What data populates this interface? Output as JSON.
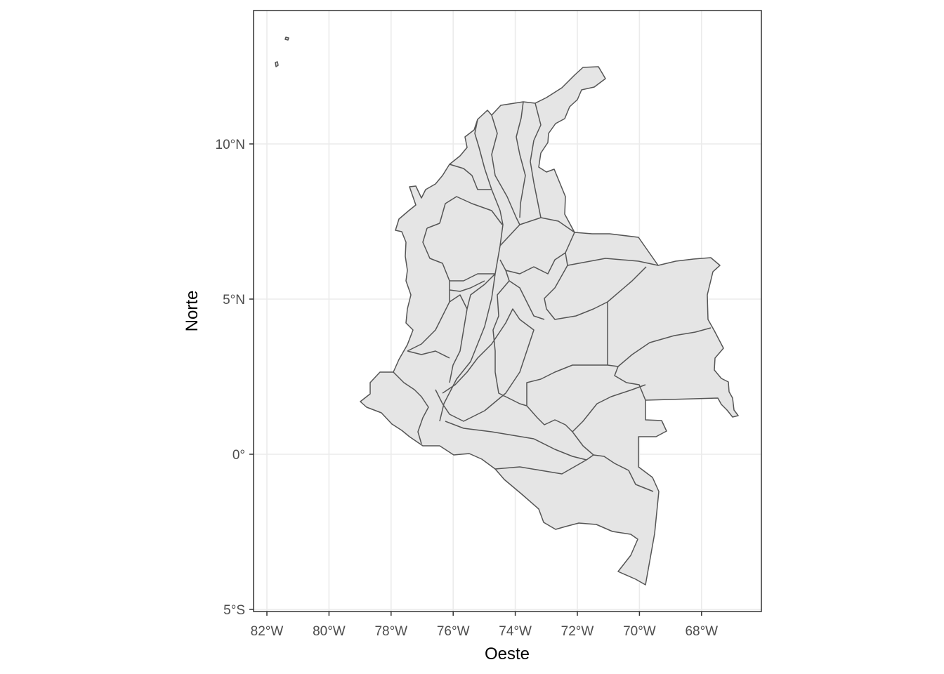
{
  "map": {
    "x_axis_title": "Oeste",
    "y_axis_title": "Norte",
    "x_ticks": [
      {
        "value": -82,
        "label": "82°W"
      },
      {
        "value": -80,
        "label": "80°W"
      },
      {
        "value": -78,
        "label": "78°W"
      },
      {
        "value": -76,
        "label": "76°W"
      },
      {
        "value": -74,
        "label": "74°W"
      },
      {
        "value": -72,
        "label": "72°W"
      },
      {
        "value": -70,
        "label": "70°W"
      },
      {
        "value": -68,
        "label": "68°W"
      }
    ],
    "y_ticks": [
      {
        "value": 10,
        "label": "10°N"
      },
      {
        "value": 5,
        "label": "5°N"
      },
      {
        "value": 0,
        "label": "0°"
      },
      {
        "value": -5,
        "label": "5°S"
      }
    ],
    "x_range": [
      -82.4,
      -66.1
    ],
    "y_range": [
      -5.0,
      14.3
    ],
    "grid": true,
    "region_fill": "#e5e5e5",
    "border_color": "#555555",
    "panel_border_color": "#333333",
    "grid_color": "#ebebeb"
  }
}
